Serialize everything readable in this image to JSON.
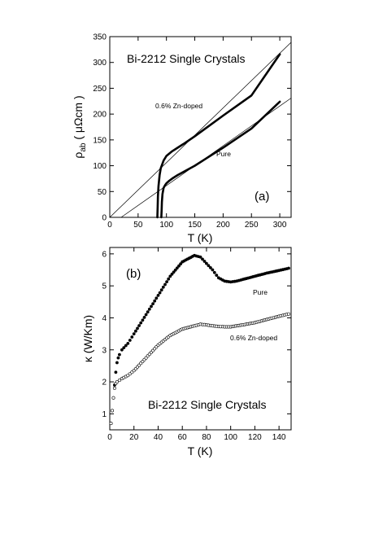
{
  "chart_data": [
    {
      "type": "line",
      "panel": "(a)",
      "title": "Bi-2212 Single Crystals",
      "xlabel": "T (K)",
      "ylabel_main": "ρ",
      "ylabel_sub": "ab",
      "ylabel_unit": "( μΩcm )",
      "xlim": [
        0,
        320
      ],
      "ylim": [
        0,
        350
      ],
      "xticks": [
        0,
        50,
        100,
        150,
        200,
        250,
        300
      ],
      "yticks": [
        0,
        50,
        100,
        150,
        200,
        250,
        300,
        350
      ],
      "series": [
        {
          "name": "0.6% Zn-doped",
          "x": [
            84,
            84.5,
            85,
            86,
            88,
            90,
            95,
            100,
            110,
            120,
            130,
            150,
            200,
            250,
            300
          ],
          "y": [
            0,
            20,
            40,
            60,
            82,
            95,
            110,
            119,
            128,
            135,
            142,
            157,
            197,
            236,
            316
          ]
        },
        {
          "name": "Pure",
          "x": [
            91,
            91.5,
            92,
            93,
            95,
            98,
            100,
            105,
            110,
            120,
            150,
            200,
            250,
            300
          ],
          "y": [
            0,
            15,
            30,
            45,
            57,
            63,
            66,
            71,
            75,
            82,
            100,
            135,
            172,
            224
          ]
        }
      ],
      "fit_lines": [
        {
          "x": [
            0,
            320
          ],
          "y": [
            0,
            339
          ]
        },
        {
          "x": [
            20,
            320
          ],
          "y": [
            0,
            231
          ]
        }
      ]
    },
    {
      "type": "scatter",
      "panel": "(b)",
      "title": "Bi-2212 Single Crystals",
      "xlabel": "T (K)",
      "ylabel": "κ  (W/Km)",
      "xlim": [
        0,
        150
      ],
      "ylim": [
        0.5,
        6.2
      ],
      "xticks": [
        0,
        20,
        40,
        60,
        80,
        100,
        120,
        140
      ],
      "yticks": [
        1,
        2,
        3,
        4,
        5,
        6
      ],
      "series": [
        {
          "name": "Pure",
          "marker": "filled",
          "x": [
            1,
            2,
            3,
            4,
            5,
            6,
            7,
            8,
            10,
            15,
            20,
            30,
            40,
            50,
            60,
            70,
            75,
            80,
            85,
            90,
            95,
            100,
            105,
            110,
            120,
            130,
            140,
            148
          ],
          "y": [
            0.7,
            1.1,
            1.5,
            1.9,
            2.3,
            2.6,
            2.75,
            2.85,
            3.0,
            3.2,
            3.5,
            4.1,
            4.7,
            5.3,
            5.75,
            5.95,
            5.9,
            5.7,
            5.5,
            5.25,
            5.15,
            5.12,
            5.15,
            5.2,
            5.3,
            5.4,
            5.48,
            5.55
          ]
        },
        {
          "name": "0.6% Zn-doped",
          "marker": "open",
          "x": [
            1,
            2,
            3,
            4,
            5,
            6,
            8,
            10,
            15,
            20,
            30,
            40,
            50,
            60,
            70,
            75,
            80,
            85,
            90,
            95,
            100,
            110,
            120,
            130,
            140,
            148
          ],
          "y": [
            0.7,
            1.1,
            1.5,
            1.8,
            1.95,
            2.0,
            2.05,
            2.1,
            2.2,
            2.35,
            2.75,
            3.15,
            3.45,
            3.65,
            3.75,
            3.8,
            3.78,
            3.75,
            3.73,
            3.72,
            3.72,
            3.78,
            3.85,
            3.95,
            4.05,
            4.12
          ]
        }
      ]
    }
  ]
}
